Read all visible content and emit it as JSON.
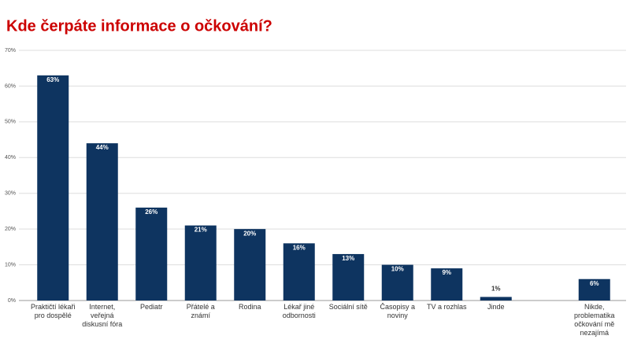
{
  "chart_data": {
    "type": "bar",
    "title": "Kde čerpáte informace o očkování?",
    "categories": [
      "Praktičtí lékaři pro dospělé",
      "Internet, veřejná diskusní fóra",
      "Pediatr",
      "Přátelé a známí",
      "Rodina",
      "Lékař jiné odbornosti",
      "Sociální sítě",
      "Časopisy a noviny",
      "TV a rozhlas",
      "Jinde",
      null,
      "Nikde, problematika očkování mě nezajímá"
    ],
    "values": [
      63,
      44,
      26,
      21,
      20,
      16,
      13,
      10,
      9,
      1,
      null,
      6
    ],
    "value_labels": [
      "63%",
      "44%",
      "26%",
      "21%",
      "20%",
      "16%",
      "13%",
      "10%",
      "9%",
      "1%",
      null,
      "6%"
    ],
    "color": "#0e3460",
    "title_color": "#cc0000",
    "ylim": [
      0,
      70
    ],
    "yticks": [
      {
        "value": 0,
        "label": "0%"
      },
      {
        "value": 10,
        "label": "10%"
      },
      {
        "value": 20,
        "label": "20%"
      },
      {
        "value": 30,
        "label": "30%"
      },
      {
        "value": 40,
        "label": "40%"
      },
      {
        "value": 50,
        "label": "50%"
      },
      {
        "value": 60,
        "label": "60%"
      },
      {
        "value": 70,
        "label": "70%"
      }
    ],
    "grid": true
  }
}
